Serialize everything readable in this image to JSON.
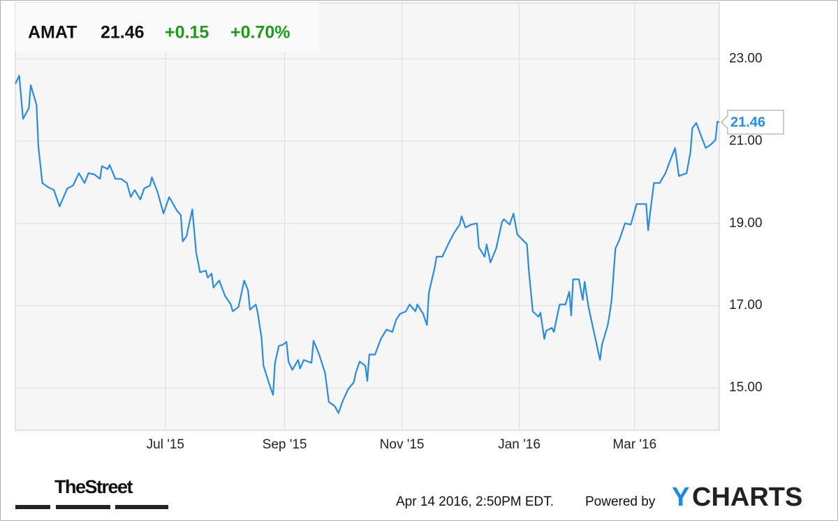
{
  "header": {
    "ticker": "AMAT",
    "price": "21.46",
    "change": "+0.15",
    "change_pct": "+0.70%"
  },
  "chart_data": {
    "type": "line",
    "x": [
      0,
      2,
      4,
      7,
      8,
      11,
      12,
      14,
      17,
      20,
      23,
      27,
      30,
      33,
      36,
      38,
      41,
      44,
      45,
      48,
      49,
      52,
      55,
      58,
      60,
      62,
      65,
      67,
      70,
      71,
      74,
      77,
      80,
      84,
      86,
      87,
      89,
      92,
      94,
      96,
      99,
      100,
      102,
      103,
      106,
      109,
      112,
      113,
      116,
      119,
      121,
      122,
      125,
      126,
      128,
      129,
      132,
      134,
      135,
      137,
      139,
      141,
      142,
      144,
      147,
      148,
      150,
      154,
      155,
      158,
      161,
      163,
      166,
      168,
      170,
      173,
      176,
      177,
      179,
      182,
      183,
      184,
      187,
      190,
      193,
      196,
      198,
      200,
      203,
      205,
      208,
      209,
      212,
      214,
      215,
      218,
      219,
      222,
      225,
      228,
      231,
      232,
      234,
      237,
      240,
      241,
      244,
      245,
      247,
      250,
      253,
      254,
      257,
      259,
      261,
      266,
      267,
      269,
      272,
      273,
      275,
      276,
      279,
      280,
      283,
      286,
      288,
      289,
      290,
      293,
      295,
      296,
      298,
      301,
      304,
      305,
      308,
      309,
      310,
      312,
      314,
      317,
      320,
      323,
      328,
      329,
      330,
      332,
      335,
      338,
      341,
      343,
      345,
      349,
      351,
      352,
      354,
      357,
      359,
      362,
      364,
      365,
      366
    ],
    "series": [
      {
        "name": "AMAT",
        "color": "#2a8be2",
        "values": [
          22.39,
          22.59,
          21.54,
          21.8,
          22.36,
          21.88,
          20.86,
          19.98,
          19.88,
          19.81,
          19.41,
          19.85,
          19.92,
          20.22,
          19.98,
          20.22,
          20.19,
          20.08,
          20.39,
          20.32,
          20.42,
          20.08,
          20.08,
          19.98,
          19.64,
          19.81,
          19.58,
          19.85,
          19.92,
          20.12,
          19.75,
          19.24,
          19.64,
          19.31,
          19.2,
          18.56,
          18.69,
          19.34,
          18.29,
          17.81,
          17.85,
          17.68,
          17.78,
          17.44,
          17.61,
          17.24,
          17.03,
          16.86,
          16.97,
          17.61,
          17.37,
          16.9,
          17.03,
          16.83,
          16.22,
          15.54,
          15.1,
          14.83,
          15.61,
          16.02,
          16.05,
          16.12,
          15.64,
          15.44,
          15.68,
          15.47,
          15.68,
          15.61,
          16.15,
          15.81,
          15.37,
          14.66,
          14.56,
          14.39,
          14.66,
          14.97,
          15.14,
          15.37,
          15.64,
          15.54,
          15.17,
          15.81,
          15.81,
          16.19,
          16.42,
          16.36,
          16.66,
          16.8,
          16.86,
          17.03,
          16.86,
          17.03,
          16.8,
          16.53,
          17.31,
          17.92,
          18.19,
          18.19,
          18.49,
          18.76,
          18.97,
          19.17,
          18.9,
          18.97,
          19.0,
          18.42,
          18.19,
          18.49,
          18.05,
          18.39,
          19.03,
          19.1,
          18.97,
          19.24,
          18.73,
          18.49,
          17.85,
          16.86,
          16.73,
          16.83,
          16.19,
          16.39,
          16.46,
          16.36,
          17.03,
          17.03,
          17.34,
          16.76,
          17.64,
          17.64,
          17.14,
          17.58,
          16.97,
          16.32,
          15.68,
          16.05,
          16.53,
          16.8,
          17.14,
          18.39,
          18.59,
          19.0,
          18.97,
          19.47,
          19.47,
          18.83,
          19.24,
          19.98,
          19.98,
          20.22,
          20.59,
          20.83,
          20.15,
          20.22,
          20.73,
          21.31,
          21.44,
          21.07,
          20.83,
          20.93,
          21.03,
          21.47,
          21.46
        ]
      }
    ],
    "xlim": [
      0,
      366
    ],
    "xticks": [
      {
        "value": 78,
        "label": "Jul '15"
      },
      {
        "value": 140,
        "label": "Sep '15"
      },
      {
        "value": 201,
        "label": "Nov '15"
      },
      {
        "value": 262,
        "label": "Jan '16"
      },
      {
        "value": 322,
        "label": "Mar '16"
      }
    ],
    "ylim": [
      13.97,
      24.36
    ],
    "yticks": [
      {
        "value": 15,
        "label": "15.00"
      },
      {
        "value": 17,
        "label": "17.00"
      },
      {
        "value": 19,
        "label": "19.00"
      },
      {
        "value": 21,
        "label": "21.00"
      },
      {
        "value": 23,
        "label": "23.00"
      }
    ],
    "grid": true
  },
  "footer": {
    "source_logo": "TheStreet",
    "timestamp": "Apr 14 2016, 2:50PM EDT.",
    "powered_by": "Powered by",
    "brand_y": "Y",
    "brand_rest": "CHARTS"
  }
}
